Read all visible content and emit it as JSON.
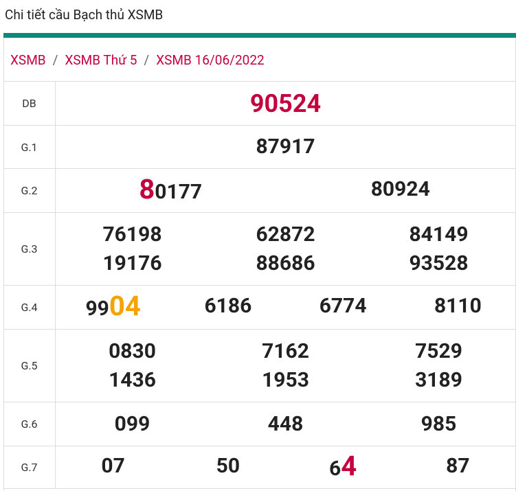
{
  "header": {
    "title": "Chi tiết cầu Bạch thủ XSMB"
  },
  "breadcrumb": {
    "items": [
      "XSMB",
      "XSMB Thứ 5",
      "XSMB 16/06/2022"
    ],
    "separator": "/"
  },
  "table": {
    "rows": [
      {
        "label": "DB",
        "numbers": [
          [
            {
              "text": "90524",
              "color": "#c5003e"
            }
          ]
        ]
      },
      {
        "label": "G.1",
        "numbers": [
          [
            "87917"
          ]
        ]
      },
      {
        "label": "G.2",
        "numbers": [
          [
            {
              "text": "8",
              "color": "#c5003e"
            },
            "0177"
          ],
          [
            "80924"
          ]
        ]
      },
      {
        "label": "G.3",
        "numbers": [
          [
            "76198"
          ],
          [
            "62872"
          ],
          [
            "84149"
          ],
          [
            "19176"
          ],
          [
            "88686"
          ],
          [
            "93528"
          ]
        ]
      },
      {
        "label": "G.4",
        "numbers": [
          [
            "99",
            {
              "text": "04",
              "color": "#f5a300"
            }
          ],
          [
            "6186"
          ],
          [
            "6774"
          ],
          [
            "8110"
          ]
        ]
      },
      {
        "label": "G.5",
        "numbers": [
          [
            "0830"
          ],
          [
            "7162"
          ],
          [
            "7529"
          ],
          [
            "1436"
          ],
          [
            "1953"
          ],
          [
            "3189"
          ]
        ]
      },
      {
        "label": "G.6",
        "numbers": [
          [
            "099"
          ],
          [
            "448"
          ],
          [
            "985"
          ]
        ]
      },
      {
        "label": "G.7",
        "numbers": [
          [
            "07"
          ],
          [
            "50"
          ],
          [
            "6",
            {
              "text": "4",
              "color": "#c5003e"
            }
          ],
          [
            "87"
          ]
        ]
      }
    ]
  }
}
